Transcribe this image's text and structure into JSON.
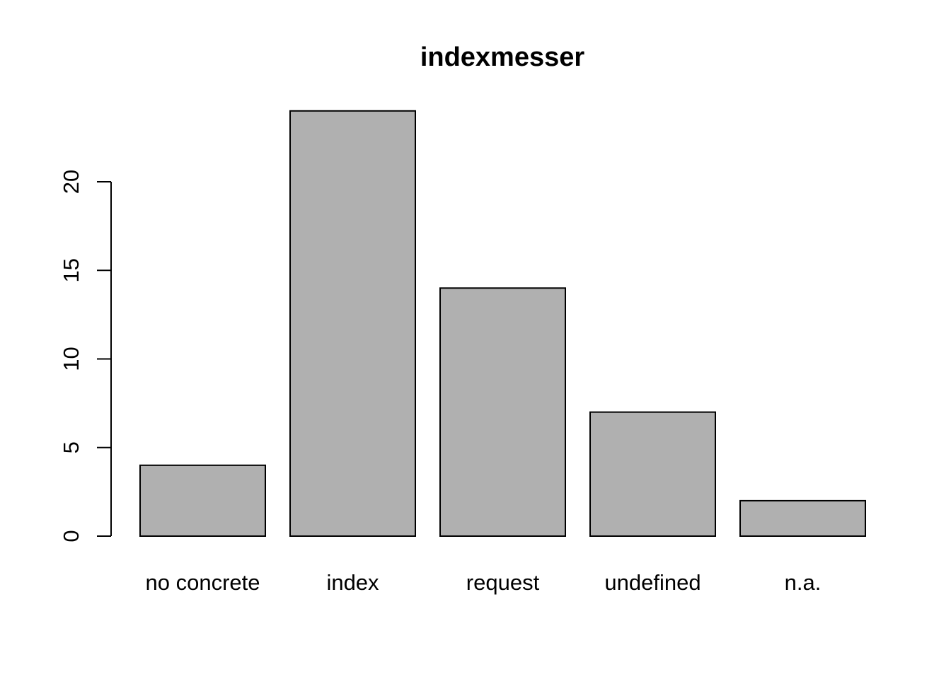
{
  "chart_data": {
    "type": "bar",
    "title": "indexmesser",
    "xlabel": "",
    "ylabel": "",
    "categories": [
      "no concrete",
      "index",
      "request",
      "undefined",
      "n.a."
    ],
    "values": [
      4,
      24,
      14,
      7,
      2
    ],
    "yticks": [
      "0",
      "5",
      "10",
      "15",
      "20"
    ],
    "ylim": [
      0,
      24
    ],
    "grid": false,
    "legend": "none",
    "bar_color": "#b0b0b0",
    "bar_stroke": "#000000"
  }
}
